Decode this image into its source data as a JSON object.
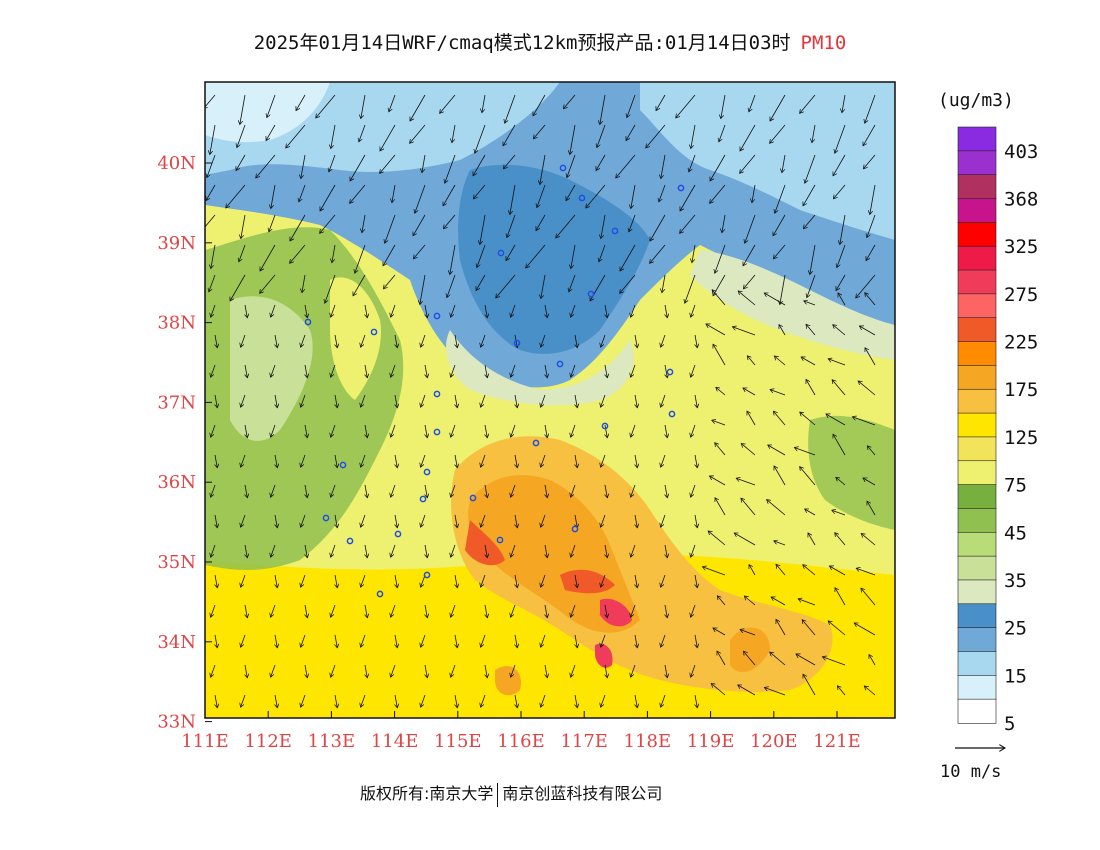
{
  "title": {
    "main": "2025年01月14日WRF/cmaq模式12km预报产品:01月14日03时",
    "species": "PM10"
  },
  "axes": {
    "x_ticks": [
      "111E",
      "112E",
      "113E",
      "114E",
      "115E",
      "116E",
      "117E",
      "118E",
      "119E",
      "120E",
      "121E"
    ],
    "y_ticks": [
      "40N",
      "39N",
      "38N",
      "37N",
      "36N",
      "35N",
      "34N",
      "33N"
    ]
  },
  "legend": {
    "unit": "(ug/m3)",
    "labels": [
      "403",
      "368",
      "325",
      "275",
      "225",
      "175",
      "125",
      "75",
      "45",
      "35",
      "25",
      "15",
      "5"
    ],
    "colors": [
      "#8a2be2",
      "#9b30d0",
      "#b03060",
      "#c8148c",
      "#ff0000",
      "#ee1a48",
      "#f03c5a",
      "#ff6464",
      "#f05a28",
      "#ff8c00",
      "#f5a623",
      "#f8c040",
      "#ffe600",
      "#f2e45a",
      "#eef070",
      "#78b040",
      "#90c050",
      "#b8dc78",
      "#c8e098",
      "#dce8c0",
      "#4a90c8",
      "#70a8d8",
      "#a8d8f0",
      "#d8f0fa",
      "#ffffff"
    ]
  },
  "wind": {
    "ref_label": "10 m/s"
  },
  "footer": {
    "copyright": "版权所有:南京大学",
    "company": "南京创蓝科技有限公司"
  }
}
